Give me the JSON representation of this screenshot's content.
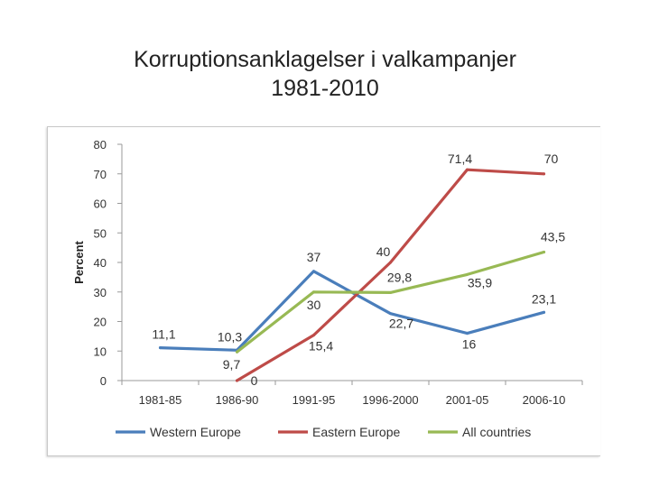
{
  "title_line1": "Korruptionsanklagelser i valkampanjer",
  "title_line2": "1981-2010",
  "chart_data": {
    "type": "line",
    "title": "Korruptionsanklagelser i valkampanjer 1981-2010",
    "xlabel": "",
    "ylabel": "Percent",
    "ylim": [
      0,
      80
    ],
    "yticks": [
      "0",
      "10",
      "20",
      "30",
      "40",
      "50",
      "60",
      "70",
      "80"
    ],
    "categories": [
      "1981-85",
      "1986-90",
      "1991-95",
      "1996-2000",
      "2001-05",
      "2006-10"
    ],
    "grid": false,
    "legend": "bottom",
    "series": [
      {
        "name": "Western Europe",
        "color": "#4a7ebb",
        "values": [
          11.1,
          10.3,
          37,
          22.7,
          16,
          23.1
        ],
        "labels": [
          "11,1",
          "10,3",
          "37",
          "22,7",
          "16",
          "23,1"
        ]
      },
      {
        "name": "Eastern Europe",
        "color": "#be4b48",
        "values": [
          null,
          0,
          15.4,
          40,
          71.4,
          70
        ],
        "labels": [
          null,
          "0",
          "15,4",
          "40",
          "71,4",
          "70"
        ]
      },
      {
        "name": "All countries",
        "color": "#98b954",
        "values": [
          null,
          9.7,
          30,
          29.8,
          35.9,
          43.5
        ],
        "labels": [
          null,
          "9,7",
          "30",
          "29,8",
          "35,9",
          "43,5"
        ]
      }
    ]
  }
}
